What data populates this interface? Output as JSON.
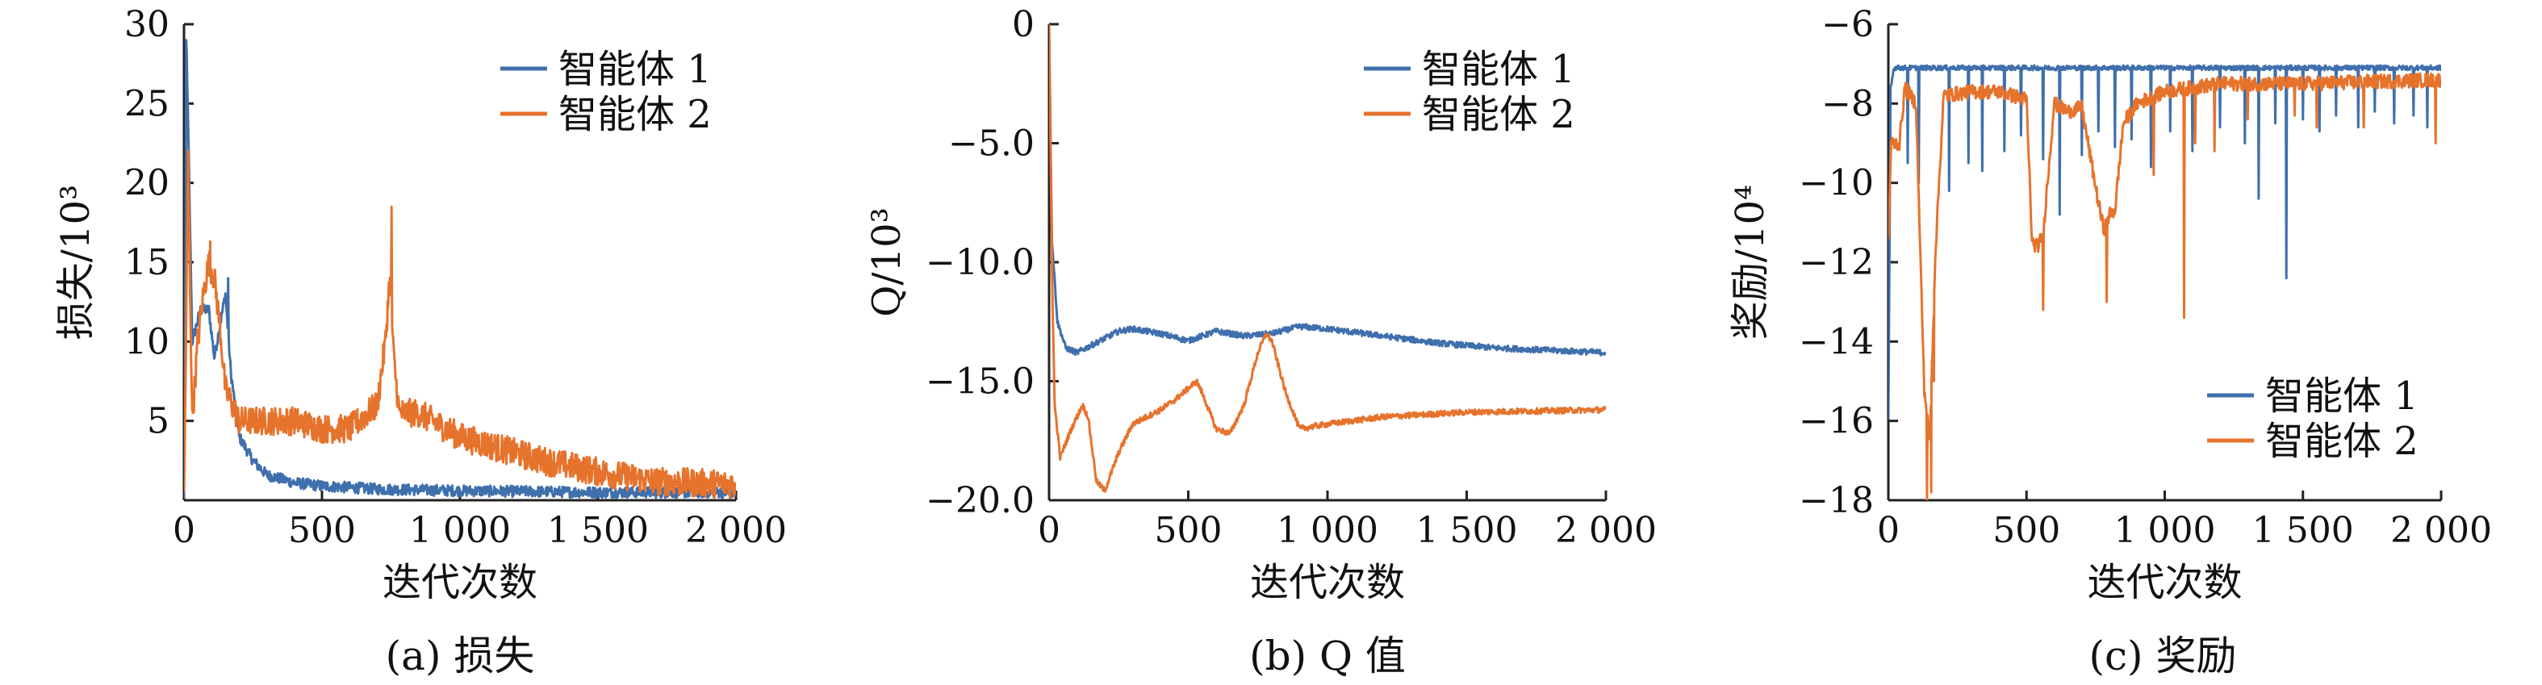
{
  "colors": {
    "agent1": "#3f6fac",
    "agent2": "#e6732c"
  },
  "chart_data": [
    {
      "type": "line",
      "caption": "(a) 损失",
      "xlabel": "迭代次数",
      "ylabel": "损失/10³",
      "xlim": [
        0,
        2000
      ],
      "ylim": [
        0,
        30
      ],
      "xticks": [
        0,
        500,
        1000,
        1500,
        2000
      ],
      "xtick_labels": [
        "0",
        "500",
        "1 000",
        "1 500",
        "2 000"
      ],
      "yticks": [
        5,
        10,
        15,
        20,
        25,
        30
      ],
      "ytick_labels": [
        "5",
        "10",
        "15",
        "20",
        "25",
        "30"
      ],
      "legend_position": "top-right",
      "series": [
        {
          "name": "智能体 1",
          "color": "#3f6fac",
          "noise": 0.35,
          "x": [
            0,
            10,
            30,
            60,
            90,
            110,
            130,
            150,
            170,
            200,
            250,
            300,
            400,
            500,
            700,
            1000,
            1500,
            2000
          ],
          "y": [
            0,
            28,
            10,
            12,
            12,
            9,
            11,
            13,
            8,
            4,
            2.5,
            1.6,
            1.1,
            0.9,
            0.7,
            0.6,
            0.5,
            0.5
          ],
          "spikes": [
            [
              8,
              29
            ],
            [
              160,
              14
            ]
          ]
        },
        {
          "name": "智能体 2",
          "color": "#e6732c",
          "noise": 0.9,
          "x": [
            0,
            15,
            30,
            50,
            70,
            90,
            110,
            130,
            150,
            200,
            300,
            400,
            500,
            600,
            700,
            730,
            745,
            760,
            780,
            850,
            900,
            1000,
            1100,
            1300,
            1500,
            1700,
            2000
          ],
          "y": [
            0,
            21,
            5,
            10,
            13,
            15,
            14,
            11,
            7,
            5,
            5,
            5,
            4.5,
            4.5,
            6,
            10,
            14,
            9,
            5.5,
            5.5,
            5,
            4,
            3.5,
            2.5,
            1.8,
            1.2,
            1.0
          ],
          "spikes": [
            [
              95,
              16.3
            ],
            [
              752,
              18.5
            ],
            [
              15,
              22
            ]
          ]
        }
      ]
    },
    {
      "type": "line",
      "caption": "(b) Q 值",
      "xlabel": "迭代次数",
      "ylabel": "Q/10³",
      "xlim": [
        0,
        2000
      ],
      "ylim": [
        -20,
        0
      ],
      "xticks": [
        0,
        500,
        1000,
        1500,
        2000
      ],
      "xtick_labels": [
        "0",
        "500",
        "1 000",
        "1 500",
        "2 000"
      ],
      "yticks": [
        0,
        -5,
        -10,
        -15,
        -20
      ],
      "ytick_labels": [
        "0",
        "−5.0",
        "−10.0",
        "−15.0",
        "−20.0"
      ],
      "legend_position": "top-right",
      "series": [
        {
          "name": "智能体 1",
          "color": "#3f6fac",
          "noise": 0.12,
          "x": [
            0,
            10,
            30,
            60,
            100,
            150,
            250,
            300,
            400,
            500,
            600,
            700,
            800,
            900,
            1000,
            1200,
            1400,
            1600,
            1800,
            2000
          ],
          "y": [
            0,
            -9,
            -12.5,
            -13.6,
            -13.8,
            -13.5,
            -12.9,
            -12.8,
            -13.0,
            -13.3,
            -12.9,
            -13.1,
            -13.0,
            -12.7,
            -12.8,
            -13.1,
            -13.4,
            -13.6,
            -13.7,
            -13.8
          ]
        },
        {
          "name": "智能体 2",
          "color": "#e6732c",
          "noise": 0.12,
          "x": [
            0,
            10,
            20,
            40,
            80,
            120,
            140,
            170,
            200,
            250,
            300,
            400,
            450,
            500,
            530,
            550,
            600,
            650,
            700,
            750,
            780,
            800,
            850,
            900,
            1000,
            1200,
            1500,
            2000
          ],
          "y": [
            0,
            -10,
            -16,
            -18.2,
            -17,
            -16,
            -16.5,
            -19.2,
            -19.6,
            -18,
            -16.8,
            -16.2,
            -15.8,
            -15.3,
            -15.0,
            -15.5,
            -17.0,
            -17.2,
            -16.0,
            -13.8,
            -13.0,
            -13.3,
            -15.5,
            -17.0,
            -16.8,
            -16.5,
            -16.3,
            -16.2
          ]
        }
      ]
    },
    {
      "type": "line",
      "caption": "(c) 奖励",
      "xlabel": "迭代次数",
      "ylabel": "奖励/10⁴",
      "xlim": [
        0,
        2000
      ],
      "ylim": [
        -18,
        -6
      ],
      "xticks": [
        0,
        500,
        1000,
        1500,
        2000
      ],
      "xtick_labels": [
        "0",
        "500",
        "1 000",
        "1 500",
        "2 000"
      ],
      "yticks": [
        -6,
        -8,
        -10,
        -12,
        -14,
        -16,
        -18
      ],
      "ytick_labels": [
        "−6",
        "−8",
        "−10",
        "−12",
        "−14",
        "−16",
        "−18"
      ],
      "legend_position": "bottom-right",
      "series": [
        {
          "name": "智能体 1",
          "color": "#3f6fac",
          "noise": 0.06,
          "x": [
            0,
            8,
            20,
            2000
          ],
          "y": [
            -16,
            -7.6,
            -7.1,
            -7.1
          ],
          "spikes": [
            [
              70,
              -9.5
            ],
            [
              110,
              -10
            ],
            [
              220,
              -10.2
            ],
            [
              290,
              -9.5
            ],
            [
              340,
              -9.7
            ],
            [
              420,
              -9.2
            ],
            [
              480,
              -8.8
            ],
            [
              560,
              -9.4
            ],
            [
              620,
              -10.8
            ],
            [
              700,
              -9.3
            ],
            [
              760,
              -8.7
            ],
            [
              820,
              -9.1
            ],
            [
              880,
              -8.9
            ],
            [
              950,
              -9.6
            ],
            [
              1020,
              -8.7
            ],
            [
              1100,
              -9.2
            ],
            [
              1200,
              -8.6
            ],
            [
              1290,
              -9.0
            ],
            [
              1340,
              -10.4
            ],
            [
              1400,
              -8.5
            ],
            [
              1440,
              -12.4
            ],
            [
              1500,
              -8.4
            ],
            [
              1560,
              -8.7
            ],
            [
              1620,
              -8.3
            ],
            [
              1700,
              -8.6
            ],
            [
              1760,
              -8.2
            ],
            [
              1830,
              -8.5
            ],
            [
              1900,
              -8.3
            ],
            [
              1950,
              -8.6
            ]
          ]
        },
        {
          "name": "智能体 2",
          "color": "#e6732c",
          "noise": 0.18,
          "x": [
            0,
            10,
            40,
            60,
            100,
            130,
            150,
            170,
            200,
            300,
            400,
            500,
            520,
            540,
            560,
            600,
            650,
            700,
            760,
            780,
            800,
            820,
            850,
            900,
            1000,
            1200,
            1500,
            2000
          ],
          "y": [
            -11.5,
            -9.0,
            -9.0,
            -7.6,
            -8.0,
            -15.2,
            -16.5,
            -11.8,
            -7.8,
            -7.7,
            -7.7,
            -7.9,
            -11.5,
            -11.6,
            -11.3,
            -8.0,
            -8.2,
            -8.1,
            -10.5,
            -11.2,
            -10.8,
            -10.7,
            -8.5,
            -8.0,
            -7.7,
            -7.5,
            -7.5,
            -7.4
          ],
          "spikes": [
            [
              140,
              -18
            ],
            [
              155,
              -17.8
            ],
            [
              165,
              -15.0
            ],
            [
              560,
              -13.2
            ],
            [
              790,
              -13.0
            ],
            [
              960,
              -9.8
            ],
            [
              1070,
              -13.4
            ],
            [
              1110,
              -9.0
            ],
            [
              1180,
              -9.2
            ],
            [
              1300,
              -8.4
            ],
            [
              1470,
              -8.3
            ],
            [
              1550,
              -8.6
            ],
            [
              1720,
              -8.6
            ],
            [
              1980,
              -9.0
            ]
          ]
        }
      ]
    }
  ]
}
